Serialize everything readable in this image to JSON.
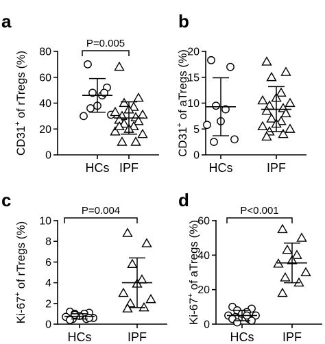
{
  "chart_data": [
    {
      "type": "scatter",
      "panel": "a",
      "ylabel": {
        "pre": "CD31",
        "sup": "+",
        "post": " of rTregs (%)"
      },
      "ylim": [
        0,
        80
      ],
      "yticks": [
        0,
        20,
        40,
        60,
        80
      ],
      "categories": [
        "HCs",
        "IPF"
      ],
      "pvalue": "P=0.005",
      "groups": [
        {
          "name": "HCs",
          "marker": "circle",
          "mean": 46,
          "sd_low": 33,
          "sd_high": 59,
          "values": [
            70,
            52,
            48,
            46,
            38,
            30,
            31,
            36,
            48
          ]
        },
        {
          "name": "IPF",
          "marker": "triangle",
          "mean": 28.5,
          "sd_low": 16,
          "sd_high": 41,
          "values": [
            68,
            44,
            40,
            37,
            35,
            33,
            31,
            30,
            29,
            27,
            26,
            24,
            22,
            20,
            18,
            16,
            10,
            10,
            22
          ]
        }
      ]
    },
    {
      "type": "scatter",
      "panel": "b",
      "ylabel": {
        "pre": "CD31",
        "sup": "+",
        "post": " of aTregs (%)"
      },
      "ylim": [
        0,
        20
      ],
      "yticks": [
        0,
        5,
        10,
        15,
        20
      ],
      "categories": [
        "HCs",
        "IPF"
      ],
      "pvalue": "",
      "groups": [
        {
          "name": "HCs",
          "marker": "circle",
          "mean": 9.3,
          "sd_low": 3.7,
          "sd_high": 14.9,
          "values": [
            18.3,
            17.0,
            9.5,
            8.8,
            6.5,
            5.8,
            3.0,
            2.5
          ]
        },
        {
          "name": "IPF",
          "marker": "triangle",
          "mean": 8.8,
          "sd_low": 4.5,
          "sd_high": 13.2,
          "values": [
            18.0,
            16.0,
            15.0,
            12.0,
            11.0,
            10.5,
            10.0,
            9.5,
            9.0,
            8.5,
            8.0,
            7.0,
            6.5,
            6.0,
            5.5,
            5.0,
            4.5,
            4.0,
            3.5
          ]
        }
      ]
    },
    {
      "type": "scatter",
      "panel": "c",
      "ylabel": {
        "pre": "Ki-67",
        "sup": "+",
        "post": " of rTregs (%)"
      },
      "ylim": [
        0,
        10
      ],
      "yticks": [
        0,
        2,
        4,
        6,
        8,
        10
      ],
      "categories": [
        "HCs",
        "IPF"
      ],
      "pvalue": "P=0.004",
      "groups": [
        {
          "name": "HCs",
          "marker": "circle",
          "mean": 0.75,
          "sd_low": 0.5,
          "sd_high": 1.0,
          "values": [
            1.2,
            1.1,
            1.0,
            1.0,
            0.8,
            0.7,
            0.6,
            0.5,
            0.5,
            0.4,
            0.6,
            0.9
          ]
        },
        {
          "name": "IPF",
          "marker": "triangle",
          "mean": 4.0,
          "sd_low": 1.6,
          "sd_high": 6.4,
          "values": [
            8.8,
            7.8,
            5.8,
            4.3,
            3.9,
            3.0,
            2.4,
            2.0,
            1.6,
            1.5
          ]
        }
      ]
    },
    {
      "type": "scatter",
      "panel": "d",
      "ylabel": {
        "pre": "Ki-67",
        "sup": "+",
        "post": " of aTregs (%)"
      },
      "ylim": [
        0,
        60
      ],
      "yticks": [
        0,
        20,
        40,
        60
      ],
      "categories": [
        "HCs",
        "IPF"
      ],
      "pvalue": "P<0.001",
      "groups": [
        {
          "name": "HCs",
          "marker": "circle",
          "mean": 5,
          "sd_low": 2,
          "sd_high": 8,
          "values": [
            10,
            9,
            8,
            7,
            6,
            5,
            5,
            4,
            3,
            3,
            2,
            1,
            5
          ]
        },
        {
          "name": "IPF",
          "marker": "triangle",
          "mean": 35.5,
          "sd_low": 24,
          "sd_high": 47,
          "values": [
            55,
            50,
            43,
            40,
            37,
            35,
            30,
            27,
            24,
            18
          ]
        }
      ]
    }
  ]
}
